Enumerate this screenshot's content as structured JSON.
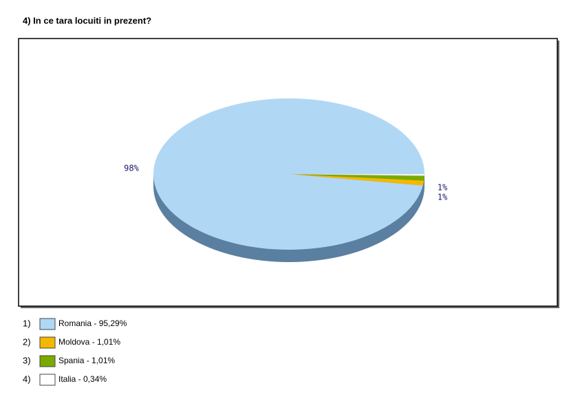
{
  "chart_data": {
    "type": "pie",
    "title": "4) In ce tara locuiti in prezent?",
    "values": [
      95.29,
      1.01,
      1.01,
      0.34
    ],
    "colors": [
      "#b0d8f5",
      "#f5b800",
      "#7aaa00",
      "#ffffff"
    ],
    "slice_labels": [
      "98%",
      "1%",
      "1%",
      null
    ],
    "legend_numbers": [
      "1)",
      "2)",
      "3)",
      "4)"
    ],
    "legend_labels": [
      "Romania - 95,29%",
      "Moldova - 1,01%",
      "Spania - 1,01%",
      "Italia - 0,34%"
    ]
  }
}
